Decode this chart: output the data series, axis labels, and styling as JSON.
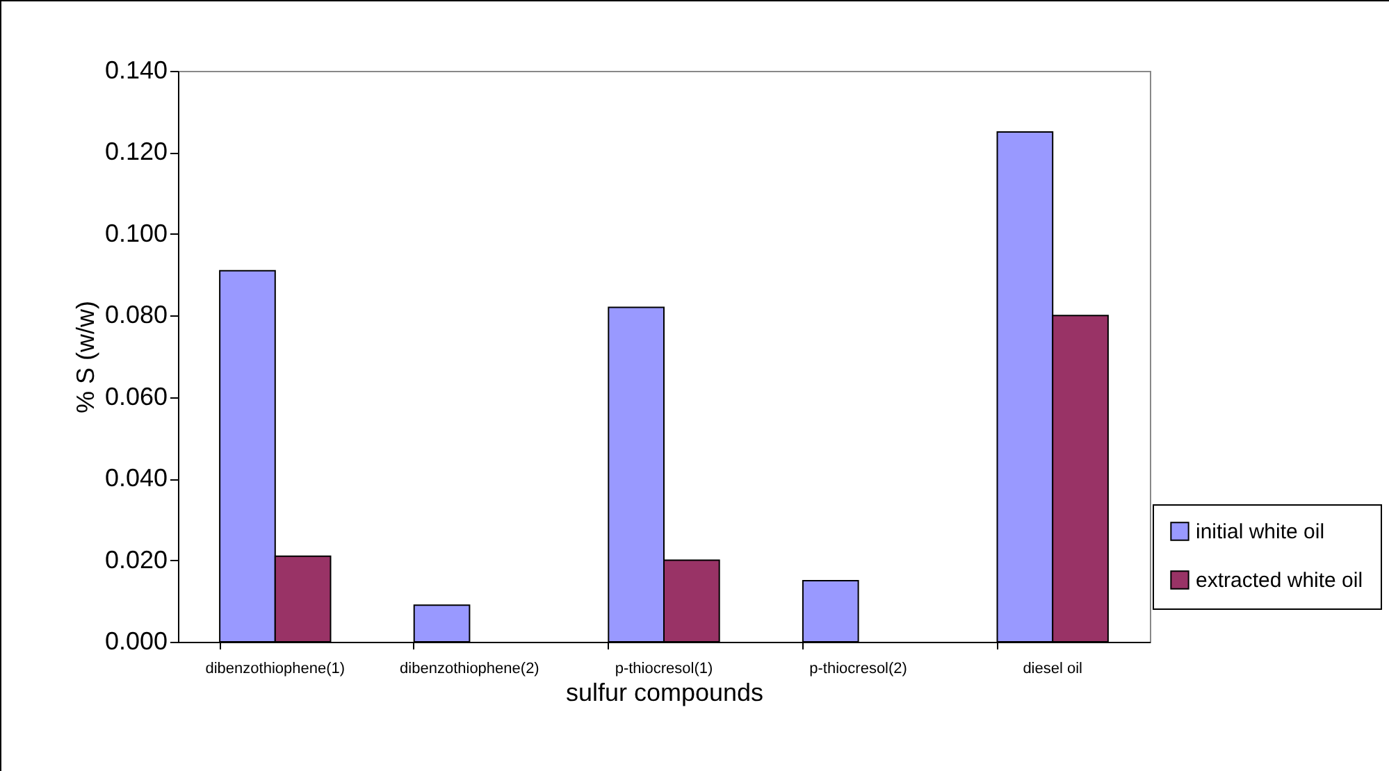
{
  "chart_data": {
    "type": "bar",
    "xlabel": "sulfur compounds",
    "ylabel": "% S (w/w)",
    "categories": [
      "dibenzothiophene(1)",
      "dibenzothiophene(2)",
      "p-thiocresol(1)",
      "p-thiocresol(2)",
      "diesel oil"
    ],
    "series": [
      {
        "name": "initial white oil",
        "color": "#9999ff",
        "values": [
          0.091,
          0.009,
          0.082,
          0.015,
          0.125
        ]
      },
      {
        "name": "extracted white oil",
        "color": "#993366",
        "values": [
          0.021,
          null,
          0.02,
          null,
          0.08
        ]
      }
    ],
    "ylim": [
      0,
      0.14
    ],
    "yticks": [
      {
        "value": 0,
        "label": "0.000"
      },
      {
        "value": 0.02,
        "label": "0.020"
      },
      {
        "value": 0.04,
        "label": "0.040"
      },
      {
        "value": 0.06,
        "label": "0.060"
      },
      {
        "value": 0.08,
        "label": "0.080"
      },
      {
        "value": 0.1,
        "label": "0.100"
      },
      {
        "value": 0.12,
        "label": "0.120"
      },
      {
        "value": 0.14,
        "label": "0.140"
      }
    ],
    "grid": false,
    "legend": "right"
  }
}
